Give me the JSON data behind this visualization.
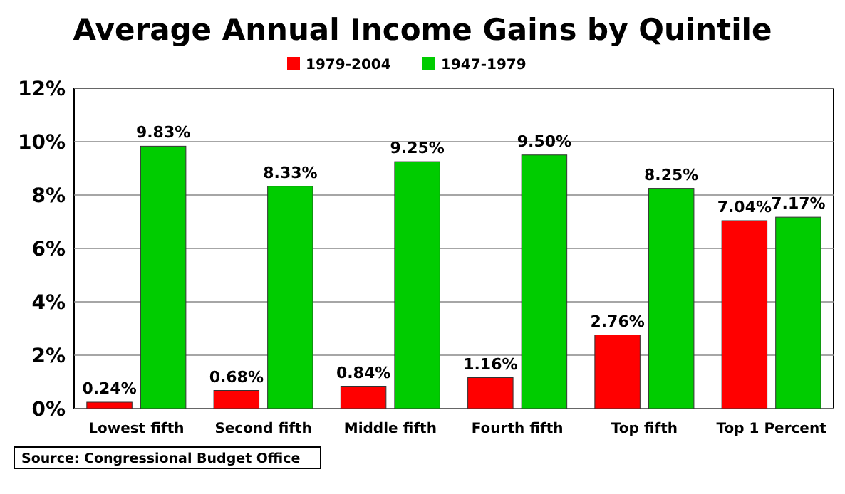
{
  "chart_data": {
    "type": "bar",
    "title": "Average Annual Income Gains by Quintile",
    "categories": [
      "Lowest fifth",
      "Second fifth",
      "Middle fifth",
      "Fourth fifth",
      "Top fifth",
      "Top 1 Percent"
    ],
    "series": [
      {
        "name": "1979-2004",
        "color": "#ff0000",
        "values": [
          0.24,
          0.68,
          0.84,
          1.16,
          2.76,
          7.04
        ],
        "value_labels": [
          "0.24%",
          "0.68%",
          "0.84%",
          "1.16%",
          "2.76%",
          "7.04%"
        ]
      },
      {
        "name": "1947-1979",
        "color": "#00cc00",
        "values": [
          9.83,
          8.33,
          9.25,
          9.5,
          8.25,
          7.17
        ],
        "value_labels": [
          "9.83%",
          "8.33%",
          "9.25%",
          "9.50%",
          "8.25%",
          "7.17%"
        ]
      }
    ],
    "ylim": [
      0,
      12
    ],
    "yticks": [
      {
        "value": 0,
        "label": "0%"
      },
      {
        "value": 2,
        "label": "2%"
      },
      {
        "value": 4,
        "label": "4%"
      },
      {
        "value": 6,
        "label": "6%"
      },
      {
        "value": 8,
        "label": "8%"
      },
      {
        "value": 10,
        "label": "10%"
      },
      {
        "value": 12,
        "label": "12%"
      }
    ],
    "grid": "y",
    "legend": "top",
    "annotations": [
      "Source: Congressional Budget Office"
    ]
  }
}
